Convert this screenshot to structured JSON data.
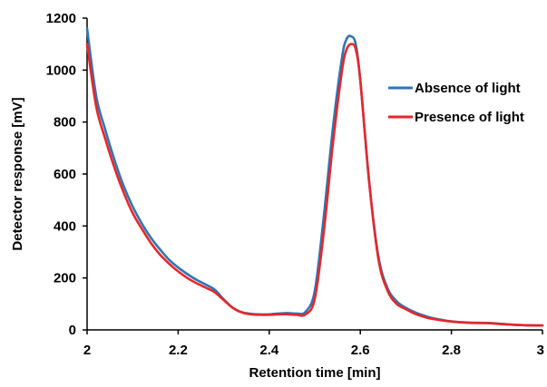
{
  "chart_data": {
    "type": "line",
    "title": "",
    "xlabel": "Retention time [min]",
    "ylabel": "Detector response [mV]",
    "xlim": [
      2,
      3
    ],
    "ylim": [
      0,
      1200
    ],
    "xticks": [
      2,
      2.2,
      2.4,
      2.6,
      2.8,
      3
    ],
    "xtick_labels": [
      "2",
      "2.2",
      "2.4",
      "2.6",
      "2.8",
      "3"
    ],
    "yticks": [
      0,
      200,
      400,
      600,
      800,
      1000,
      1200
    ],
    "ytick_labels": [
      "0",
      "200",
      "400",
      "600",
      "800",
      "1000",
      "1200"
    ],
    "grid": false,
    "legend_position": "right",
    "series": [
      {
        "name": "Absence of light",
        "color": "#2e75b6",
        "x": [
          2.0,
          2.02,
          2.04,
          2.06,
          2.08,
          2.1,
          2.12,
          2.14,
          2.16,
          2.18,
          2.2,
          2.22,
          2.24,
          2.26,
          2.28,
          2.3,
          2.32,
          2.34,
          2.36,
          2.38,
          2.4,
          2.42,
          2.44,
          2.46,
          2.48,
          2.5,
          2.52,
          2.54,
          2.56,
          2.57,
          2.58,
          2.59,
          2.6,
          2.62,
          2.64,
          2.66,
          2.68,
          2.7,
          2.72,
          2.74,
          2.76,
          2.8,
          2.84,
          2.88,
          2.92,
          2.96,
          3.0
        ],
        "y": [
          1160,
          900,
          770,
          655,
          555,
          475,
          410,
          355,
          310,
          270,
          240,
          215,
          193,
          175,
          155,
          118,
          85,
          68,
          62,
          60,
          60,
          63,
          65,
          63,
          70,
          150,
          440,
          780,
          1050,
          1120,
          1130,
          1100,
          960,
          560,
          280,
          160,
          110,
          85,
          68,
          55,
          45,
          33,
          28,
          27,
          22,
          18,
          17
        ]
      },
      {
        "name": "Presence of light",
        "color": "#e8262a",
        "x": [
          2.0,
          2.02,
          2.04,
          2.06,
          2.08,
          2.1,
          2.12,
          2.14,
          2.16,
          2.18,
          2.2,
          2.22,
          2.24,
          2.26,
          2.28,
          2.3,
          2.32,
          2.34,
          2.36,
          2.38,
          2.4,
          2.42,
          2.44,
          2.46,
          2.48,
          2.5,
          2.52,
          2.54,
          2.56,
          2.57,
          2.58,
          2.59,
          2.6,
          2.62,
          2.64,
          2.66,
          2.68,
          2.7,
          2.72,
          2.74,
          2.76,
          2.8,
          2.84,
          2.88,
          2.92,
          2.96,
          3.0
        ],
        "y": [
          1100,
          860,
          735,
          625,
          530,
          450,
          390,
          335,
          290,
          255,
          225,
          200,
          180,
          163,
          145,
          115,
          85,
          67,
          60,
          58,
          58,
          60,
          60,
          58,
          60,
          120,
          380,
          720,
          1000,
          1080,
          1100,
          1080,
          960,
          560,
          270,
          150,
          100,
          80,
          62,
          50,
          42,
          32,
          27,
          26,
          21,
          18,
          17
        ]
      }
    ]
  }
}
